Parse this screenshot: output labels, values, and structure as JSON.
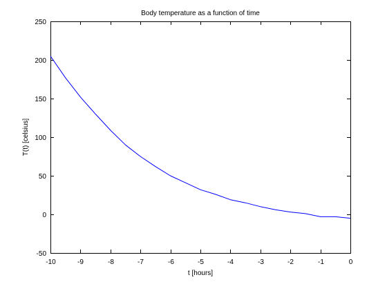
{
  "chart_data": {
    "type": "line",
    "title": "Body temperature as a function of time",
    "xlabel": "t [hours]",
    "ylabel": "T(t) [celsius]",
    "xlim": [
      -10,
      0
    ],
    "ylim": [
      -50,
      250
    ],
    "xticks": [
      -10,
      -9,
      -8,
      -7,
      -6,
      -5,
      -4,
      -3,
      -2,
      -1,
      0
    ],
    "yticks": [
      -50,
      0,
      50,
      100,
      150,
      200,
      250
    ],
    "grid": false,
    "legend": "none",
    "series": [
      {
        "color": "#0000ff",
        "x": [
          -10,
          -9.5,
          -9,
          -8.5,
          -8,
          -7.5,
          -7,
          -6.5,
          -6,
          -5.5,
          -5,
          -4.5,
          -4,
          -3.5,
          -3,
          -2.5,
          -2,
          -1.5,
          -1,
          -0.5,
          0
        ],
        "y": [
          205,
          177,
          152,
          130,
          109,
          90,
          75,
          62,
          50,
          41,
          32,
          26,
          19,
          15,
          10,
          6,
          3,
          1,
          -3,
          -3,
          -5
        ]
      }
    ]
  }
}
